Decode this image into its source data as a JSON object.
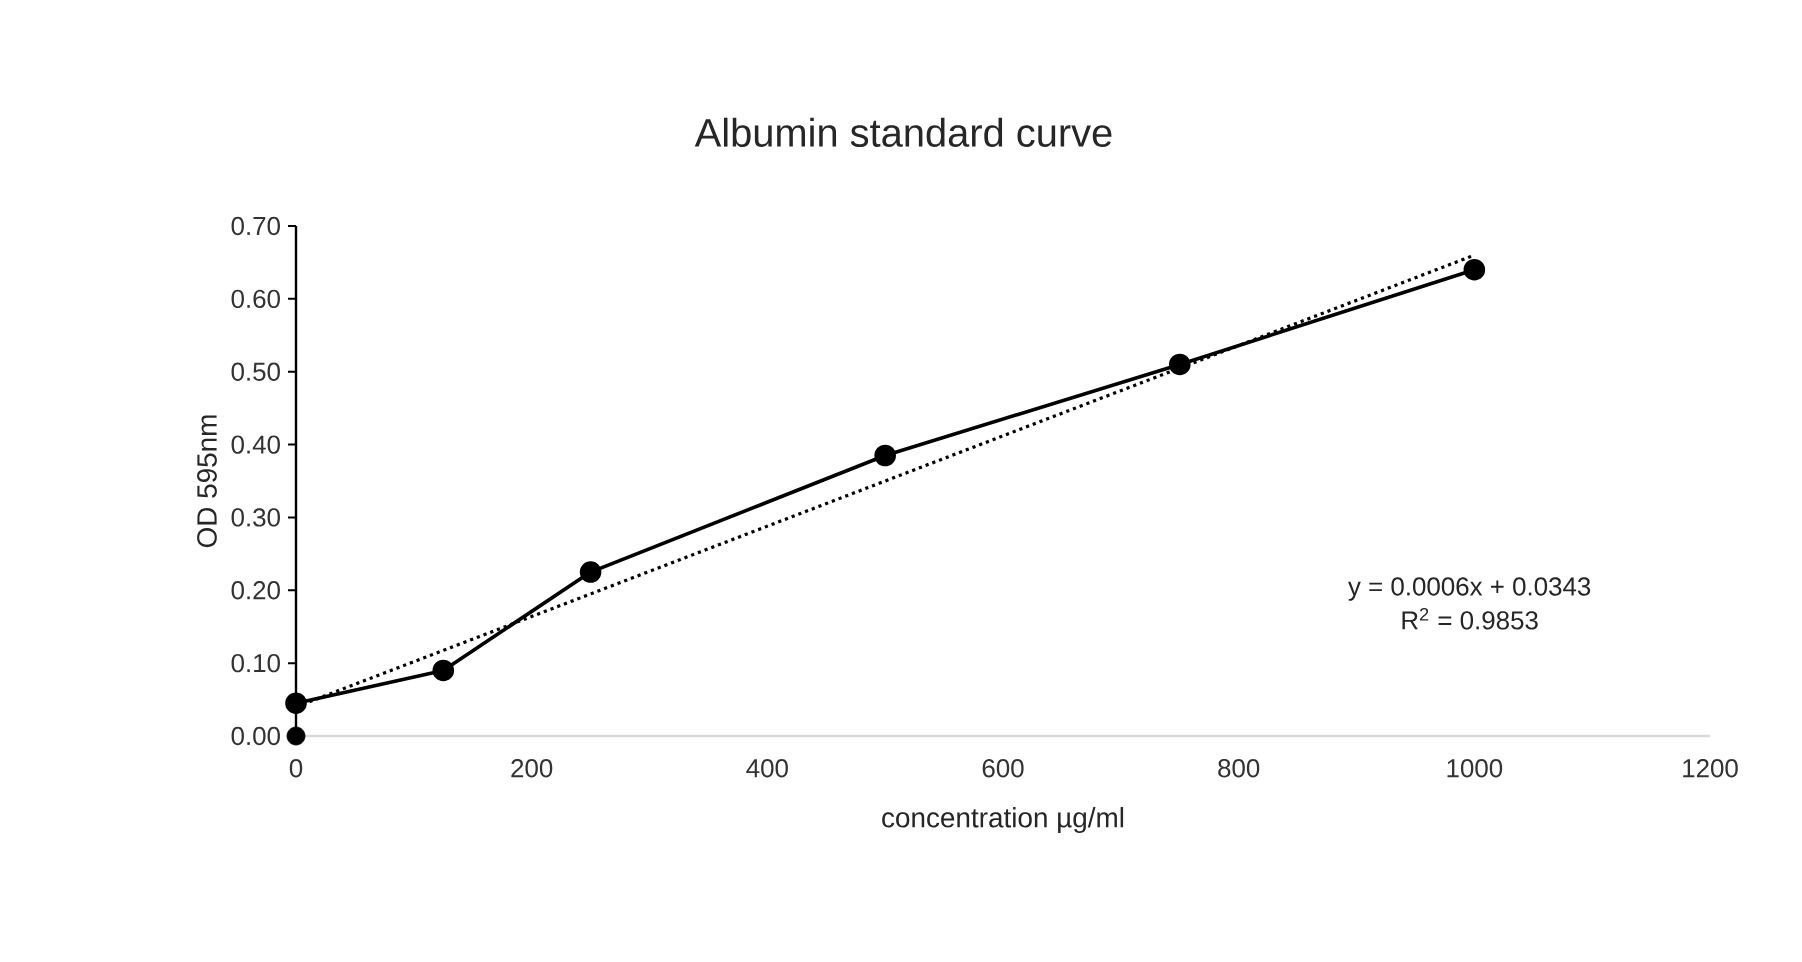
{
  "chart_data": {
    "type": "line",
    "title": "Albumin standard curve",
    "xlabel": "concentration µg/ml",
    "ylabel": "OD 595nm",
    "xlim": [
      0,
      1200
    ],
    "xticks": [
      0,
      200,
      400,
      600,
      800,
      1000,
      1200
    ],
    "ylim": [
      0,
      0.7
    ],
    "yticks": [
      {
        "value": 0,
        "label": "0.00"
      },
      {
        "value": 0.1,
        "label": "0.10"
      },
      {
        "value": 0.2,
        "label": "0.20"
      },
      {
        "value": 0.3,
        "label": "0.30"
      },
      {
        "value": 0.4,
        "label": "0.40"
      },
      {
        "value": 0.5,
        "label": "0.50"
      },
      {
        "value": 0.6,
        "label": "0.60"
      },
      {
        "value": 0.7,
        "label": "0.70"
      }
    ],
    "annotations": [
      "y = 0.0006x + 0.0343",
      "R$^{2}$ = 0.9853"
    ],
    "series": [
      {
        "color": "#000000",
        "marker": "circle",
        "line_style": "solid",
        "x": [
          0,
          125,
          250,
          500,
          750,
          1000
        ],
        "values": [
          0.045,
          0.09,
          0.225,
          0.385,
          0.51,
          0.64
        ]
      },
      {
        "type": "scatter",
        "color": "#000000",
        "marker": "circle",
        "x": [
          0
        ],
        "values": [
          0
        ]
      },
      {
        "color": "#000000",
        "marker": "none",
        "line_style": "dotted",
        "x": [
          0,
          1000
        ],
        "values": [
          0.04,
          0.66
        ]
      }
    ]
  }
}
